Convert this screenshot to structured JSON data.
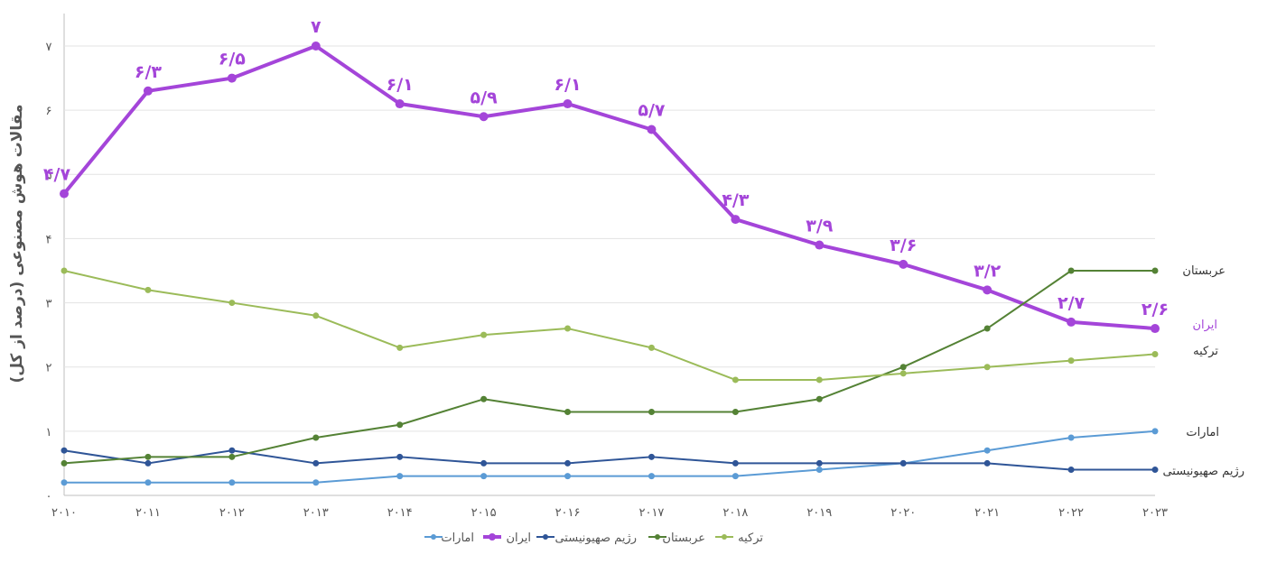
{
  "chart_data": {
    "type": "line",
    "title": "",
    "xlabel": "",
    "ylabel": "مقالات هوش مصنوعی (درصد از کل)",
    "x": [
      "۲۰۱۰",
      "۲۰۱۱",
      "۲۰۱۲",
      "۲۰۱۳",
      "۲۰۱۴",
      "۲۰۱۵",
      "۲۰۱۶",
      "۲۰۱۷",
      "۲۰۱۸",
      "۲۰۱۹",
      "۲۰۲۰",
      "۲۰۲۱",
      "۲۰۲۲",
      "۲۰۲۳"
    ],
    "ylim": [
      0,
      7
    ],
    "yticks": [
      "۰",
      "۱",
      "۲",
      "۳",
      "۴",
      "۵",
      "۶",
      "۷"
    ],
    "grid": true,
    "legend_position": "bottom",
    "series": [
      {
        "name": "امارات",
        "color": "#5b9bd5",
        "values": [
          0.2,
          0.2,
          0.2,
          0.2,
          0.3,
          0.3,
          0.3,
          0.3,
          0.3,
          0.4,
          0.5,
          0.7,
          0.9,
          1.0
        ],
        "end_label": "امارات"
      },
      {
        "name": "ایران",
        "color": "#a445d9",
        "values": [
          4.7,
          6.3,
          6.5,
          7.0,
          6.1,
          5.9,
          6.1,
          5.7,
          4.3,
          3.9,
          3.6,
          3.2,
          2.7,
          2.6
        ],
        "end_label": "ایران",
        "data_labels": [
          "۴/۷",
          "۶/۳",
          "۶/۵",
          "۷",
          "۶/۱",
          "۵/۹",
          "۶/۱",
          "۵/۷",
          "۴/۳",
          "۳/۹",
          "۳/۶",
          "۳/۲",
          "۲/۷",
          "۲/۶"
        ]
      },
      {
        "name": "رژیم صهیونیستی",
        "color": "#2f5597",
        "values": [
          0.7,
          0.5,
          0.7,
          0.5,
          0.6,
          0.5,
          0.5,
          0.6,
          0.5,
          0.5,
          0.5,
          0.5,
          0.4,
          0.4
        ],
        "end_label": "رژیم صهیونیستی"
      },
      {
        "name": "عربستان",
        "color": "#548235",
        "values": [
          0.5,
          0.6,
          0.6,
          0.9,
          1.1,
          1.5,
          1.3,
          1.3,
          1.3,
          1.5,
          2.0,
          2.6,
          3.5,
          3.5
        ],
        "end_label": "عربستان"
      },
      {
        "name": "ترکیه",
        "color": "#9bbb59",
        "values": [
          3.5,
          3.2,
          3.0,
          2.8,
          2.3,
          2.5,
          2.6,
          2.3,
          1.8,
          1.8,
          1.9,
          2.0,
          2.1,
          2.2
        ],
        "end_label": "ترکیه"
      }
    ]
  }
}
